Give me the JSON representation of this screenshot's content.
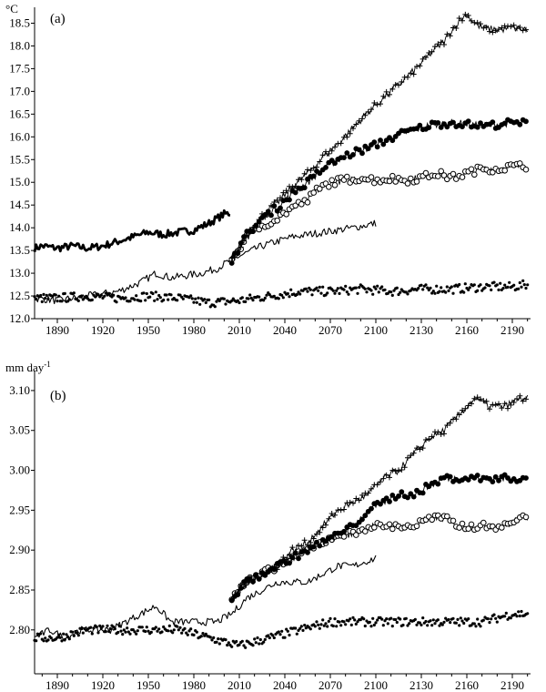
{
  "chart_data": [
    {
      "type": "line",
      "panel_label": "(a)",
      "ylabel": "°C",
      "xlim": [
        1875,
        2202
      ],
      "ylim": [
        12.0,
        18.85
      ],
      "x_ticks": [
        1890,
        1920,
        1950,
        1980,
        2010,
        2040,
        2070,
        2100,
        2130,
        2160,
        2190
      ],
      "y_ticks": [
        "12.0",
        "12.5",
        "13.0",
        "13.5",
        "14.0",
        "14.5",
        "15.0",
        "15.5",
        "16.0",
        "16.5",
        "17.0",
        "17.5",
        "18.0",
        "18.5"
      ],
      "grid": false,
      "legend": "none",
      "series": [
        {
          "style": "thick-line",
          "x": [
            1875,
            1880,
            1890,
            1900,
            1910,
            1920,
            1930,
            1940,
            1950,
            1960,
            1970,
            1980,
            1990,
            2000,
            2004
          ],
          "y": [
            13.55,
            13.6,
            13.55,
            13.6,
            13.55,
            13.6,
            13.7,
            13.8,
            13.9,
            13.85,
            13.9,
            13.95,
            14.1,
            14.3,
            14.32
          ]
        },
        {
          "style": "thin-line",
          "x": [
            1875,
            1890,
            1910,
            1930,
            1945,
            1955,
            1965,
            1975,
            1985,
            1995,
            2005,
            2015,
            2025,
            2035,
            2045,
            2055,
            2065,
            2075,
            2085,
            2100
          ],
          "y": [
            12.45,
            12.4,
            12.5,
            12.6,
            12.8,
            13.0,
            12.9,
            12.95,
            13.0,
            13.1,
            13.3,
            13.45,
            13.6,
            13.7,
            13.8,
            13.85,
            13.9,
            13.95,
            14.0,
            14.1
          ]
        },
        {
          "style": "dots",
          "x": [
            1875,
            1890,
            1910,
            1930,
            1950,
            1970,
            1990,
            2010,
            2030,
            2050,
            2070,
            2090,
            2110,
            2130,
            2150,
            2170,
            2190,
            2200
          ],
          "y": [
            12.45,
            12.45,
            12.5,
            12.45,
            12.5,
            12.45,
            12.35,
            12.4,
            12.5,
            12.6,
            12.6,
            12.65,
            12.6,
            12.65,
            12.65,
            12.7,
            12.7,
            12.75
          ]
        },
        {
          "style": "open-circles",
          "x": [
            2005,
            2015,
            2025,
            2035,
            2045,
            2055,
            2060,
            2070,
            2080,
            2090,
            2100,
            2110,
            2120,
            2130,
            2140,
            2150,
            2160,
            2170,
            2180,
            2190,
            2200
          ],
          "y": [
            13.3,
            13.8,
            14.05,
            14.2,
            14.45,
            14.6,
            14.8,
            15.0,
            15.05,
            15.1,
            15.05,
            15.08,
            15.05,
            15.1,
            15.2,
            15.1,
            15.2,
            15.3,
            15.3,
            15.35,
            15.35
          ]
        },
        {
          "style": "filled-circles",
          "x": [
            2005,
            2015,
            2025,
            2035,
            2045,
            2055,
            2065,
            2075,
            2085,
            2095,
            2105,
            2115,
            2125,
            2135,
            2145,
            2155,
            2165,
            2175,
            2185,
            2195,
            2200
          ],
          "y": [
            13.3,
            13.85,
            14.2,
            14.45,
            14.75,
            15.0,
            15.3,
            15.5,
            15.65,
            15.75,
            15.9,
            16.05,
            16.15,
            16.25,
            16.3,
            16.3,
            16.25,
            16.25,
            16.3,
            16.3,
            16.3
          ]
        },
        {
          "style": "crosses",
          "x": [
            2005,
            2015,
            2025,
            2035,
            2045,
            2055,
            2065,
            2075,
            2085,
            2095,
            2105,
            2115,
            2125,
            2135,
            2145,
            2150,
            2155,
            2160,
            2165,
            2170,
            2180,
            2190,
            2200
          ],
          "y": [
            13.3,
            13.85,
            14.25,
            14.55,
            14.9,
            15.2,
            15.55,
            15.85,
            16.2,
            16.55,
            16.85,
            17.15,
            17.45,
            17.8,
            18.1,
            18.35,
            18.55,
            18.7,
            18.5,
            18.4,
            18.35,
            18.4,
            18.35
          ]
        }
      ]
    },
    {
      "type": "line",
      "panel_label": "(b)",
      "ylabel": "mm day",
      "ylabel_superscript": "-1",
      "xlim": [
        1875,
        2202
      ],
      "ylim": [
        2.745,
        3.125
      ],
      "x_ticks": [
        1890,
        1920,
        1950,
        1980,
        2010,
        2040,
        2070,
        2100,
        2130,
        2160,
        2190
      ],
      "y_ticks": [
        "2.80",
        "2.85",
        "2.90",
        "2.95",
        "3.00",
        "3.05",
        "3.10"
      ],
      "grid": false,
      "legend": "none",
      "series": [
        {
          "style": "thin-line",
          "x": [
            1875,
            1885,
            1895,
            1905,
            1915,
            1925,
            1935,
            1945,
            1955,
            1965,
            1975,
            1985,
            1995,
            2005,
            2015,
            2025,
            2035,
            2045,
            2055,
            2065,
            2075,
            2085,
            2100
          ],
          "y": [
            2.79,
            2.8,
            2.79,
            2.8,
            2.8,
            2.8,
            2.81,
            2.82,
            2.83,
            2.81,
            2.81,
            2.81,
            2.81,
            2.82,
            2.84,
            2.85,
            2.86,
            2.86,
            2.86,
            2.87,
            2.88,
            2.88,
            2.89
          ]
        },
        {
          "style": "dots",
          "x": [
            1875,
            1890,
            1910,
            1930,
            1950,
            1970,
            1990,
            2010,
            2030,
            2050,
            2070,
            2090,
            2110,
            2130,
            2150,
            2170,
            2190,
            2200
          ],
          "y": [
            2.79,
            2.79,
            2.8,
            2.8,
            2.8,
            2.8,
            2.79,
            2.78,
            2.79,
            2.8,
            2.81,
            2.81,
            2.81,
            2.81,
            2.81,
            2.81,
            2.82,
            2.82
          ]
        },
        {
          "style": "open-circles",
          "x": [
            2005,
            2015,
            2025,
            2035,
            2045,
            2055,
            2065,
            2075,
            2085,
            2095,
            2105,
            2115,
            2125,
            2135,
            2145,
            2155,
            2165,
            2175,
            2185,
            2195,
            2200
          ],
          "y": [
            2.84,
            2.86,
            2.87,
            2.88,
            2.89,
            2.9,
            2.91,
            2.92,
            2.92,
            2.93,
            2.93,
            2.93,
            2.93,
            2.94,
            2.94,
            2.93,
            2.93,
            2.93,
            2.93,
            2.94,
            2.94
          ]
        },
        {
          "style": "filled-circles",
          "x": [
            2005,
            2015,
            2025,
            2035,
            2045,
            2055,
            2065,
            2075,
            2085,
            2095,
            2105,
            2115,
            2125,
            2135,
            2145,
            2155,
            2165,
            2175,
            2185,
            2195,
            2200
          ],
          "y": [
            2.84,
            2.86,
            2.87,
            2.88,
            2.89,
            2.9,
            2.91,
            2.92,
            2.93,
            2.95,
            2.96,
            2.97,
            2.97,
            2.98,
            2.99,
            2.99,
            2.99,
            2.99,
            2.99,
            2.99,
            2.99
          ]
        },
        {
          "style": "crosses",
          "x": [
            2005,
            2015,
            2025,
            2035,
            2045,
            2055,
            2065,
            2075,
            2085,
            2095,
            2105,
            2115,
            2125,
            2135,
            2145,
            2155,
            2160,
            2165,
            2175,
            2185,
            2195,
            2200
          ],
          "y": [
            2.84,
            2.86,
            2.87,
            2.88,
            2.9,
            2.91,
            2.93,
            2.95,
            2.96,
            2.97,
            2.99,
            3.0,
            3.02,
            3.04,
            3.05,
            3.07,
            3.08,
            3.09,
            3.08,
            3.08,
            3.09,
            3.09
          ]
        }
      ]
    }
  ]
}
